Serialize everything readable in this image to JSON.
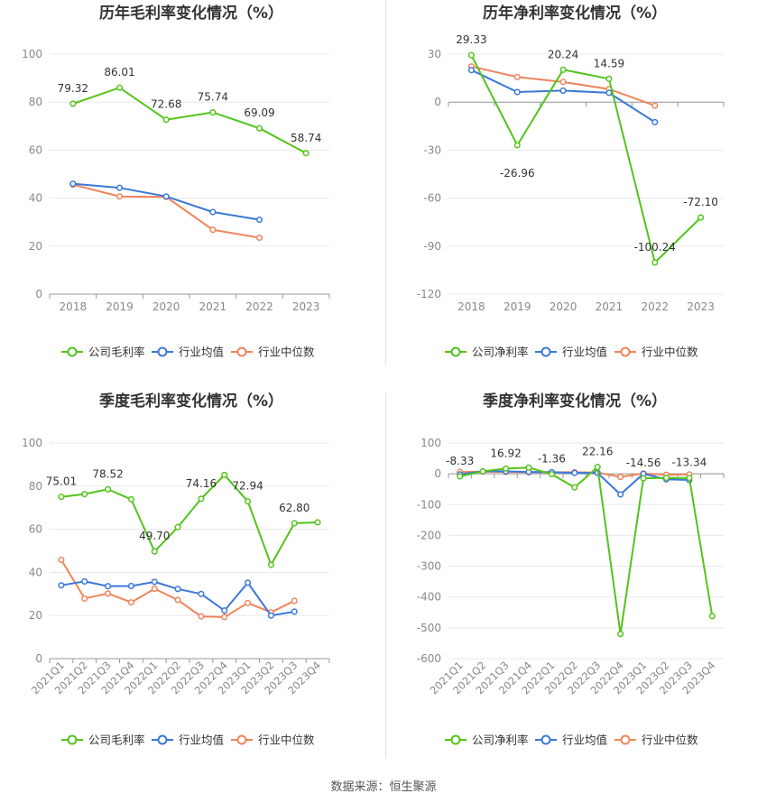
{
  "colors": {
    "company": "#52c41a",
    "avg": "#3a78d8",
    "median": "#f0845c",
    "grid": "#e8e8e8",
    "axis": "#999999"
  },
  "source": "数据来源：恒生聚源",
  "charts": [
    {
      "id": "annual-gross",
      "title": "历年毛利率变化情况（%）",
      "legend": [
        "公司毛利率",
        "行业均值",
        "行业中位数"
      ],
      "chart_data": {
        "type": "line",
        "categories": [
          "2018",
          "2019",
          "2020",
          "2021",
          "2022",
          "2023"
        ],
        "ylim": [
          0,
          100
        ],
        "yticks": [
          0,
          20,
          40,
          60,
          80,
          100
        ],
        "series": [
          {
            "name": "公司毛利率",
            "values": [
              79.32,
              86.01,
              72.68,
              75.74,
              69.09,
              58.74
            ],
            "labels": [
              "79.32",
              "86.01",
              "72.68",
              "75.74",
              "69.09",
              "58.74"
            ]
          },
          {
            "name": "行业均值",
            "values": [
              46.0,
              44.3,
              40.7,
              34.2,
              31.0,
              null
            ]
          },
          {
            "name": "行业中位数",
            "values": [
              45.6,
              40.7,
              40.5,
              26.8,
              23.5,
              null
            ]
          }
        ]
      }
    },
    {
      "id": "annual-net",
      "title": "历年净利率变化情况（%）",
      "legend": [
        "公司净利率",
        "行业均值",
        "行业中位数"
      ],
      "chart_data": {
        "type": "line",
        "categories": [
          "2018",
          "2019",
          "2020",
          "2021",
          "2022",
          "2023"
        ],
        "ylim": [
          -120,
          30
        ],
        "yticks": [
          -120,
          -90,
          -60,
          -30,
          0,
          30
        ],
        "series": [
          {
            "name": "公司净利率",
            "values": [
              29.33,
              -26.96,
              20.24,
              14.59,
              -100.24,
              -72.1
            ],
            "labels": [
              "29.33",
              "-26.96",
              "20.24",
              "14.59",
              "-100.24",
              "-72.10"
            ]
          },
          {
            "name": "行业均值",
            "values": [
              20.0,
              6.3,
              7.2,
              5.8,
              -12.5,
              null
            ]
          },
          {
            "name": "行业中位数",
            "values": [
              22.3,
              15.7,
              12.6,
              8.2,
              -2.2,
              null
            ]
          }
        ]
      }
    },
    {
      "id": "quarterly-gross",
      "title": "季度毛利率变化情况（%）",
      "legend": [
        "公司毛利率",
        "行业均值",
        "行业中位数"
      ],
      "chart_data": {
        "type": "line",
        "categories": [
          "2021Q1",
          "2021Q2",
          "2021Q3",
          "2021Q4",
          "2022Q1",
          "2022Q2",
          "2022Q3",
          "2022Q4",
          "2023Q1",
          "2023Q2",
          "2023Q3",
          "2023Q4"
        ],
        "ylim": [
          0,
          100
        ],
        "yticks": [
          0,
          20,
          40,
          60,
          80,
          100
        ],
        "series": [
          {
            "name": "公司毛利率",
            "values": [
              75.01,
              76.3,
              78.52,
              73.9,
              49.7,
              61.0,
              74.16,
              85.2,
              72.94,
              43.5,
              62.8,
              63.2
            ],
            "labels": [
              "75.01",
              null,
              "78.52",
              null,
              "49.70",
              null,
              "74.16",
              null,
              "72.94",
              null,
              "62.80",
              null
            ]
          },
          {
            "name": "行业均值",
            "values": [
              34.0,
              35.8,
              33.6,
              33.7,
              35.6,
              32.3,
              30.0,
              22.3,
              35.2,
              20.0,
              21.8,
              null
            ]
          },
          {
            "name": "行业中位数",
            "values": [
              45.8,
              27.9,
              30.2,
              26.1,
              32.4,
              27.2,
              19.6,
              19.3,
              25.8,
              21.5,
              26.8,
              null
            ]
          }
        ]
      }
    },
    {
      "id": "quarterly-net",
      "title": "季度净利率变化情况（%）",
      "legend": [
        "公司净利率",
        "行业均值",
        "行业中位数"
      ],
      "chart_data": {
        "type": "line",
        "categories": [
          "2021Q1",
          "2021Q2",
          "2021Q3",
          "2021Q4",
          "2022Q1",
          "2022Q2",
          "2022Q3",
          "2022Q4",
          "2023Q1",
          "2023Q2",
          "2023Q3",
          "2023Q4"
        ],
        "ylim": [
          -600,
          100
        ],
        "yticks": [
          -600,
          -500,
          -400,
          -300,
          -200,
          -100,
          0,
          100
        ],
        "series": [
          {
            "name": "公司净利率",
            "values": [
              -8.33,
              8.0,
              16.92,
              20.0,
              -1.36,
              -44.0,
              22.16,
              -520.0,
              -14.56,
              -13.0,
              -13.34,
              -462.0
            ],
            "labels": [
              "-8.33",
              null,
              "16.92",
              null,
              "-1.36",
              null,
              "22.16",
              null,
              "-14.56",
              null,
              "-13.34",
              null
            ]
          },
          {
            "name": "行业均值",
            "values": [
              -2.0,
              8.0,
              8.0,
              6.0,
              5.0,
              3.0,
              3.0,
              -67.0,
              0.0,
              -18.0,
              -20.0,
              null
            ]
          },
          {
            "name": "行业中位数",
            "values": [
              6.0,
              7.0,
              6.0,
              5.0,
              5.0,
              5.0,
              4.0,
              -10.0,
              1.0,
              -3.0,
              -2.0,
              null
            ]
          }
        ]
      }
    }
  ]
}
